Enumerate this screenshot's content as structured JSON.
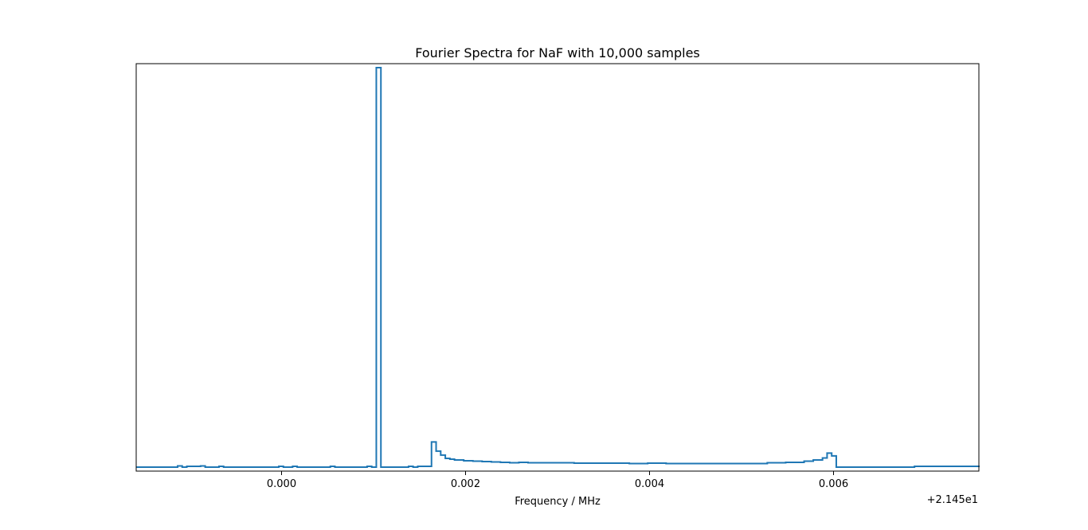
{
  "chart_data": {
    "type": "line",
    "drawstyle": "steps",
    "title": "Fourier Spectra for NaF with 10,000 samples",
    "xlabel": "Frequency / MHz",
    "ylabel": "",
    "x_offset_label": "+2.145e1",
    "xlim": [
      -0.00158,
      0.00758
    ],
    "ylim": [
      -0.01,
      1.01
    ],
    "x_ticks": [
      0.0,
      0.002,
      0.004,
      0.006
    ],
    "x_tick_labels": [
      "0.000",
      "0.002",
      "0.004",
      "0.006"
    ],
    "y_ticks_visible": false,
    "grid": false,
    "line_color": "#1f77b4",
    "series": [
      {
        "x": [
          -0.00158,
          -0.00113,
          -0.00108,
          -0.00103,
          -0.00088,
          -0.00083,
          -0.00073,
          -0.00068,
          -0.00063,
          -3e-05,
          2e-05,
          0.00012,
          0.00017,
          0.00022,
          0.00053,
          0.00058,
          0.00093,
          0.00098,
          0.00103,
          0.00108,
          0.00113,
          0.00138,
          0.00143,
          0.00148,
          0.00163,
          0.00168,
          0.00173,
          0.00178,
          0.00183,
          0.00188,
          0.00198,
          0.00208,
          0.00218,
          0.00228,
          0.00238,
          0.00248,
          0.00258,
          0.00268,
          0.00278,
          0.00298,
          0.00318,
          0.00338,
          0.00358,
          0.00378,
          0.00398,
          0.00418,
          0.00438,
          0.00458,
          0.00478,
          0.00498,
          0.00518,
          0.00528,
          0.00548,
          0.00568,
          0.00578,
          0.00588,
          0.00593,
          0.00598,
          0.00603,
          0.00683,
          0.00688,
          0.00768
        ],
        "y": [
          0.0,
          0.003,
          0.0,
          0.002,
          0.003,
          0.0,
          0.0,
          0.002,
          0.0,
          0.002,
          0.0,
          0.002,
          0.0,
          0.0,
          0.002,
          0.0,
          0.002,
          0.0,
          1.0,
          0.0,
          0.0,
          0.002,
          0.0,
          0.002,
          0.063,
          0.04,
          0.03,
          0.022,
          0.02,
          0.018,
          0.016,
          0.015,
          0.014,
          0.013,
          0.012,
          0.011,
          0.012,
          0.011,
          0.011,
          0.011,
          0.01,
          0.01,
          0.01,
          0.009,
          0.01,
          0.009,
          0.009,
          0.009,
          0.009,
          0.009,
          0.009,
          0.011,
          0.012,
          0.015,
          0.018,
          0.023,
          0.035,
          0.028,
          0.0,
          0.0,
          0.002,
          0.0
        ]
      }
    ]
  }
}
